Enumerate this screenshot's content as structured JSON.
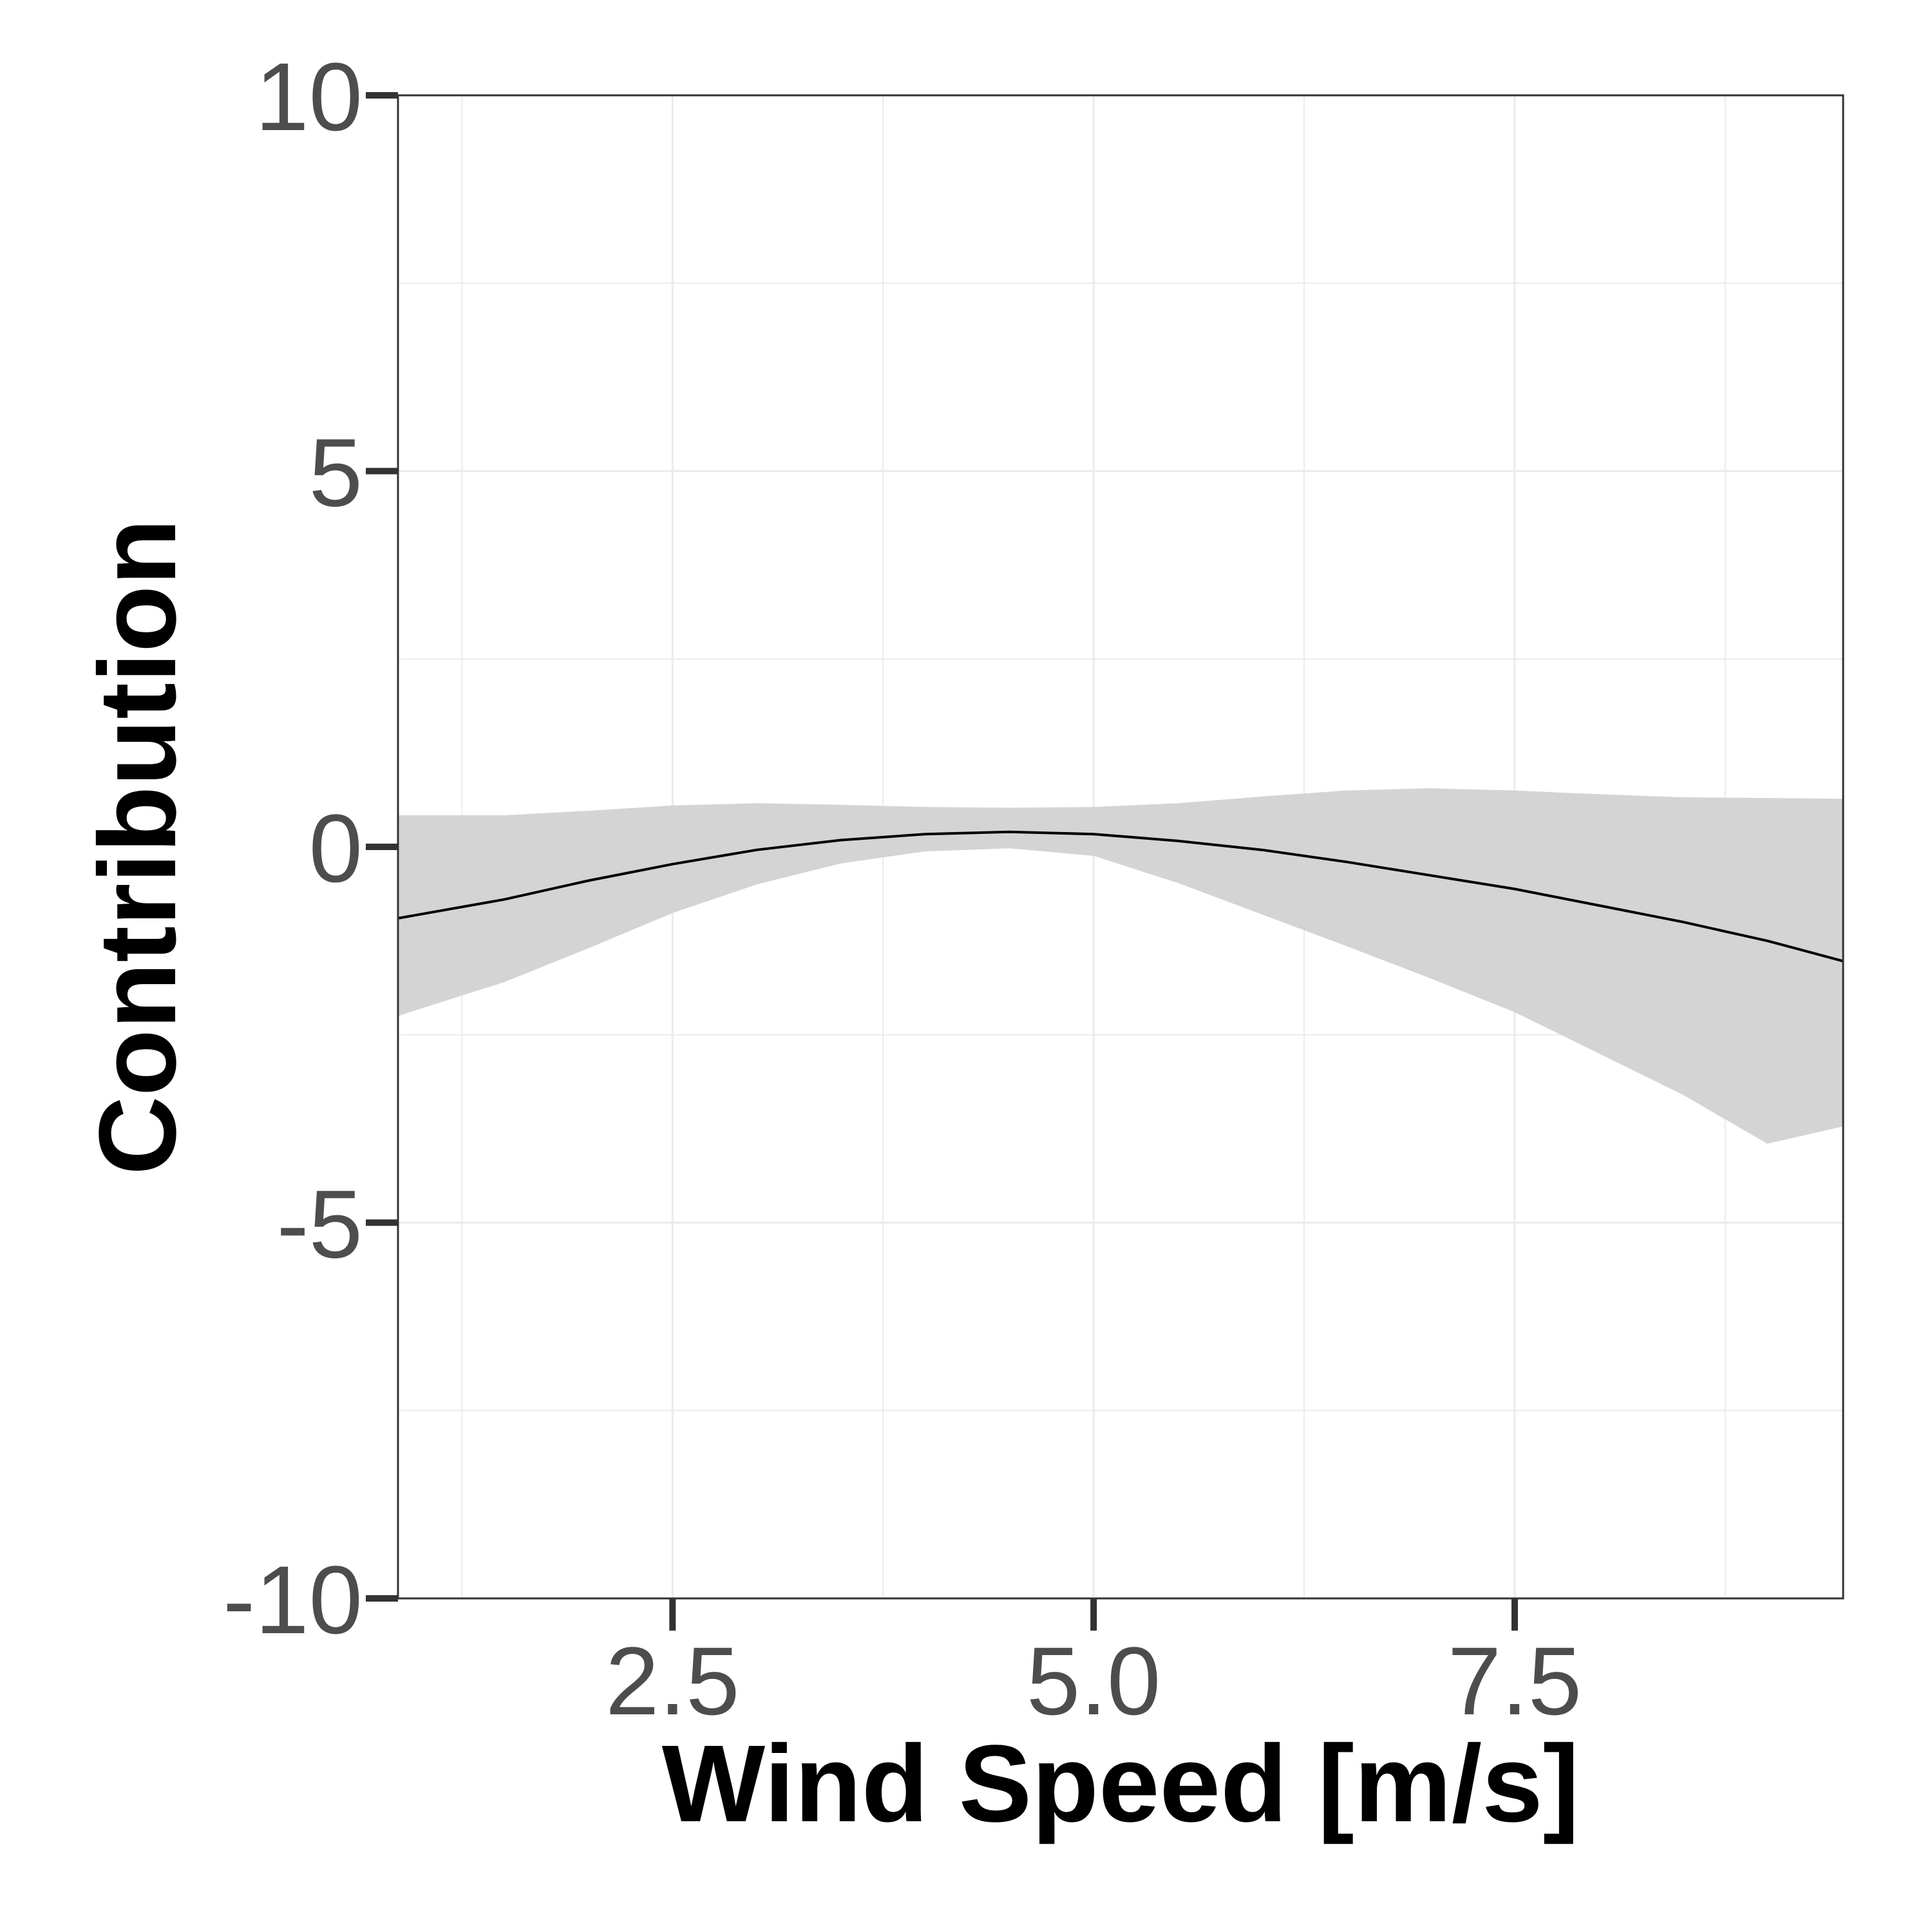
{
  "chart_data": {
    "type": "line",
    "title": "",
    "xlabel": "Wind Speed [m/s]",
    "ylabel": "Contribution",
    "xlim": [
      0.87,
      9.45
    ],
    "ylim": [
      -10,
      10
    ],
    "x_ticks": [
      2.5,
      5.0,
      7.5
    ],
    "x_tick_labels": [
      "2.5",
      "5.0",
      "7.5"
    ],
    "y_ticks": [
      -10,
      -5,
      0,
      5,
      10
    ],
    "y_tick_labels": [
      "-10",
      "-5",
      "0",
      "5",
      "10"
    ],
    "grid": true,
    "legend": "none",
    "series": [
      {
        "x": [
          0.87,
          1.5,
          2.0,
          2.5,
          3.0,
          3.5,
          4.0,
          4.5,
          5.0,
          5.5,
          6.0,
          6.5,
          7.0,
          7.5,
          8.0,
          8.5,
          9.0,
          9.45
        ],
        "y": [
          -0.95,
          -0.7,
          -0.45,
          -0.23,
          -0.04,
          0.09,
          0.17,
          0.2,
          0.17,
          0.08,
          -0.04,
          -0.2,
          -0.38,
          -0.56,
          -0.78,
          -1.0,
          -1.25,
          -1.52
        ],
        "ci_lower": [
          -2.25,
          -1.8,
          -1.35,
          -0.88,
          -0.5,
          -0.22,
          -0.06,
          -0.02,
          -0.12,
          -0.48,
          -0.9,
          -1.32,
          -1.75,
          -2.2,
          -2.75,
          -3.3,
          -3.95,
          -3.72
        ],
        "ci_upper": [
          0.42,
          0.42,
          0.48,
          0.55,
          0.58,
          0.56,
          0.53,
          0.52,
          0.53,
          0.58,
          0.67,
          0.75,
          0.78,
          0.75,
          0.7,
          0.66,
          0.65,
          0.64
        ]
      }
    ],
    "colors": {
      "line": "#000000",
      "ribbon": "#d4d4d4",
      "grid": "#ebebeb",
      "panel_border": "#333333",
      "tick_text": "#4d4d4d"
    }
  }
}
